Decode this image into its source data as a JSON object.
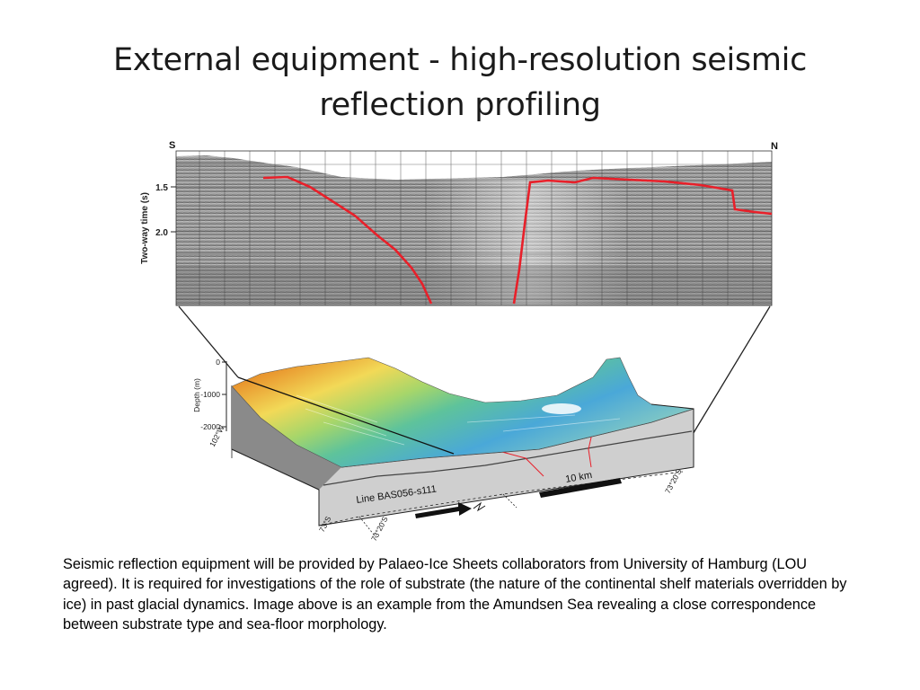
{
  "slide": {
    "title_line1": "External equipment - high-resolution seismic",
    "title_line2": "reflection profiling"
  },
  "seismic_profile": {
    "south_label": "S",
    "north_label": "N",
    "y_axis_title": "Two-way time (s)",
    "y_ticks": [
      "1.5",
      "2.0"
    ]
  },
  "block_diagram": {
    "depth_axis_title": "Depth (m)",
    "depth_ticks": [
      "0",
      "-1000",
      "-2000"
    ],
    "line_label": "Line BAS056-s111",
    "scale_label": "10 km",
    "corner_labels": [
      "102°W",
      "73°S",
      "73°20'S",
      "73°20'S",
      "73°S"
    ]
  },
  "caption": {
    "text": "Seismic reflection equipment will be provided by Palaeo-Ice Sheets collaborators from University of Hamburg (LOU agreed). It is required for investigations of the role of substrate (the nature of the continental shelf materials overridden by ice) in past glacial dynamics. Image above is an example from the Amundsen Sea revealing a close correspondence between substrate type and sea-floor morphology."
  },
  "colors": {
    "fault_line": "#e8202a",
    "seismic_bg": "#9a9a9a",
    "bathy_shallow": "#e9962e",
    "bathy_deep": "#4aa8d8"
  }
}
